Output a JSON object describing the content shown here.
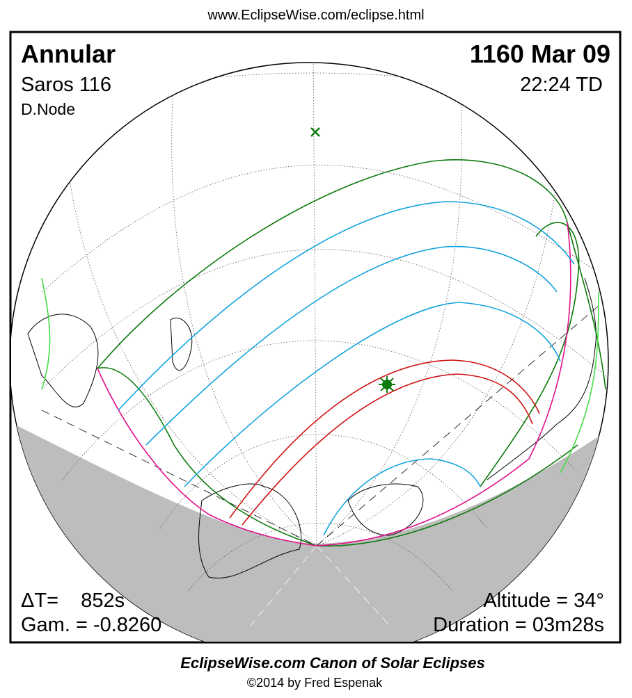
{
  "header": {
    "url": "www.EclipseWise.com/eclipse.html"
  },
  "map": {
    "eclipse_type": "Annular",
    "saros": "Saros 116",
    "node": "D.Node",
    "date": "1160 Mar 09",
    "time": "22:24 TD",
    "delta_t": "ΔT=    852s",
    "gamma": "Gam. = -0.8260",
    "altitude": "Altitude = 34°",
    "duration": "Duration = 03m28s"
  },
  "footer": {
    "title": "EclipseWise.com Canon of Solar Eclipses",
    "copyright": "©2014 by Fred Espenak"
  }
}
